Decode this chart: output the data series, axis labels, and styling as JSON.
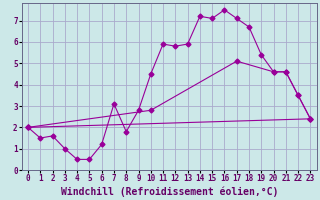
{
  "xlabel": "Windchill (Refroidissement éolien,°C)",
  "bg_color": "#cce8e8",
  "grid_color": "#aaaacc",
  "line_color": "#990099",
  "xlim": [
    -0.5,
    23.5
  ],
  "ylim": [
    0,
    7.8
  ],
  "xticks": [
    0,
    1,
    2,
    3,
    4,
    5,
    6,
    7,
    8,
    9,
    10,
    11,
    12,
    13,
    14,
    15,
    16,
    17,
    18,
    19,
    20,
    21,
    22,
    23
  ],
  "yticks": [
    0,
    1,
    2,
    3,
    4,
    5,
    6,
    7
  ],
  "curve1_x": [
    0,
    1,
    2,
    3,
    4,
    5,
    6,
    7,
    8,
    9,
    10,
    11,
    12,
    13,
    14,
    15,
    16,
    17,
    18,
    19,
    20,
    21,
    22,
    23
  ],
  "curve1_y": [
    2.0,
    1.5,
    1.6,
    1.0,
    0.5,
    0.5,
    1.2,
    3.1,
    1.8,
    2.8,
    4.5,
    5.9,
    5.8,
    5.9,
    7.2,
    7.1,
    7.5,
    7.1,
    6.7,
    5.4,
    4.6,
    4.6,
    3.5,
    2.4
  ],
  "curve2_x": [
    0,
    23
  ],
  "curve2_y": [
    2.0,
    2.4
  ],
  "curve3_x": [
    0,
    10,
    17,
    20,
    21,
    22,
    23
  ],
  "curve3_y": [
    2.0,
    2.8,
    5.1,
    4.6,
    4.6,
    3.5,
    2.4
  ],
  "xlabel_fontsize": 7,
  "tick_fontsize": 5.5,
  "font_family": "monospace"
}
